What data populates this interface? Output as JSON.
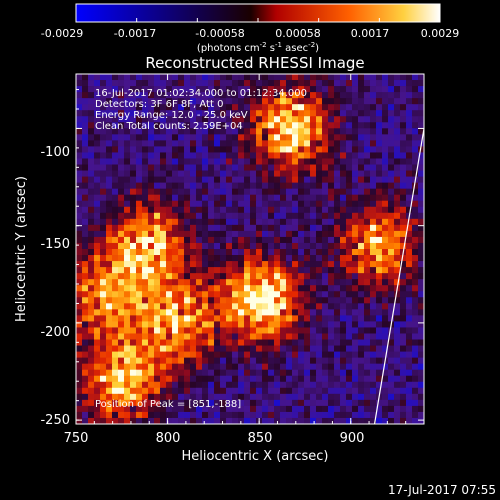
{
  "colorbar": {
    "ticks": [
      "-0.0029",
      "-0.0017",
      "-0.00058",
      "0.00058",
      "0.0017",
      "0.0029"
    ],
    "unit_main": "(photons cm",
    "unit_exp1": "-2",
    "unit_mid": " s",
    "unit_exp2": "-1",
    "unit_end": " asec",
    "unit_exp3": "-2",
    "unit_close": ")",
    "range": [
      -0.0029,
      0.0029
    ]
  },
  "title": "Reconstructed RHESSI Image",
  "annotations": {
    "time": "16-Jul-2017 01:02:34.000 to 01:12:34.000",
    "detectors": "Detectors: 3F 6F 8F, Att 0",
    "energy": "Energy Range: 12.0 - 25.0 keV",
    "clean": "Clean     Total counts: 2.59E+04",
    "peak": "Position of Peak = [851,-188]"
  },
  "footer_timestamp": "17-Jul-2017 07:55",
  "chart_data": {
    "type": "heatmap",
    "title": "Reconstructed RHESSI Image",
    "xlabel": "Heliocentric X (arcsec)",
    "ylabel": "Heliocentric Y (arcsec)",
    "xlim": [
      750,
      940
    ],
    "ylim": [
      -252,
      -72
    ],
    "xticks": [
      "750",
      "800",
      "850",
      "900"
    ],
    "xtick_values": [
      750,
      800,
      850,
      900
    ],
    "yticks": [
      "-250",
      "-200",
      "-150",
      "-100"
    ],
    "ytick_values": [
      -250,
      -200,
      -150,
      -100
    ],
    "colormap": [
      "#0000ff",
      "#000000",
      "#ff0000",
      "#ffffff"
    ],
    "peak_position": [
      851,
      -188
    ],
    "bright_regions": [
      {
        "x": 867,
        "y": -100,
        "intensity": 0.9
      },
      {
        "x": 790,
        "y": -160,
        "intensity": 0.8
      },
      {
        "x": 805,
        "y": -200,
        "intensity": 0.75
      },
      {
        "x": 851,
        "y": -188,
        "intensity": 1.0
      },
      {
        "x": 775,
        "y": -230,
        "intensity": 0.85
      },
      {
        "x": 765,
        "y": -185,
        "intensity": 0.7
      },
      {
        "x": 915,
        "y": -160,
        "intensity": 0.75
      }
    ],
    "limb_line": [
      [
        913,
        -252
      ],
      [
        940,
        -100
      ]
    ]
  }
}
